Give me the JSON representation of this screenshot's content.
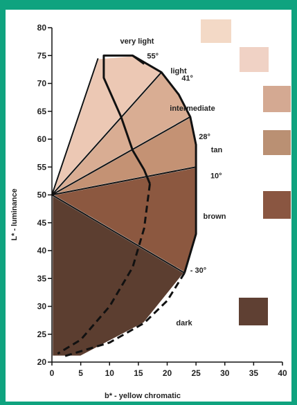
{
  "chart_data": {
    "type": "scatter",
    "xlabel": "b* - yellow chromatic",
    "ylabel": "L* - luminance",
    "xlim": [
      0,
      40
    ],
    "ylim": [
      20,
      80
    ],
    "x_ticks": [
      "0",
      "5",
      "10",
      "15",
      "20",
      "25",
      "30",
      "35",
      "40"
    ],
    "y_ticks": [
      "20",
      "25",
      "30",
      "35",
      "40",
      "45",
      "50",
      "55",
      "60",
      "65",
      "70",
      "75",
      "80"
    ],
    "origin": {
      "b": 0,
      "L": 50
    },
    "angle_labels": [
      {
        "text": "55°",
        "b": 16.5,
        "L": 74.5
      },
      {
        "text": "41°",
        "b": 22.5,
        "L": 70.5
      },
      {
        "text": "28°",
        "b": 25.5,
        "L": 60.0
      },
      {
        "text": "10°",
        "b": 27.5,
        "L": 53.0
      },
      {
        "text": "- 30°",
        "b": 24.0,
        "L": 36.0
      }
    ],
    "categories": [
      {
        "label": "very light",
        "color": "#f5dcc0",
        "swatch_color": "#f3d9c6",
        "region": [
          [
            0,
            50
          ],
          [
            5,
            54
          ],
          [
            14,
            75
          ],
          [
            12,
            67
          ],
          [
            8,
            68.5
          ],
          [
            4,
            62
          ],
          [
            2,
            55
          ]
        ]
      },
      {
        "label": "light",
        "color": "#ecc8b4",
        "swatch_color": "#f0d2c5",
        "region": [
          [
            0,
            50
          ],
          [
            8,
            74.5
          ],
          [
            14,
            75
          ],
          [
            19,
            72
          ]
        ]
      },
      {
        "label": "intermediate",
        "color": "#d9ad93",
        "swatch_color": "#d4a992",
        "region": [
          [
            0,
            50
          ],
          [
            19,
            72
          ],
          [
            22,
            68
          ],
          [
            24,
            64
          ]
        ]
      },
      {
        "label": "tan",
        "color": "#c49274",
        "swatch_color": "#ba9073",
        "region": [
          [
            0,
            50
          ],
          [
            24,
            64
          ],
          [
            25,
            59
          ],
          [
            25,
            55
          ]
        ]
      },
      {
        "label": "brown",
        "color": "#8c5840",
        "swatch_color": "#8a5641",
        "region": [
          [
            0,
            50
          ],
          [
            25,
            55
          ],
          [
            25,
            43
          ],
          [
            23,
            36
          ],
          [
            0,
            50
          ]
        ]
      },
      {
        "label": "dark",
        "color": "#5c3e30",
        "swatch_color": "#5f4033",
        "region": [
          [
            0,
            50
          ],
          [
            23,
            36
          ],
          [
            16,
            27
          ],
          [
            5,
            21
          ],
          [
            0,
            21
          ]
        ]
      }
    ]
  }
}
